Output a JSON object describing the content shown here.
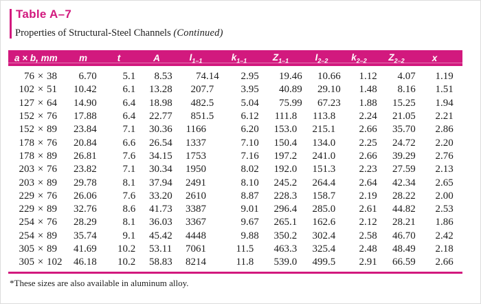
{
  "title": "Table A–7",
  "subtitle": {
    "main": "Properties of Structural-Steel Channels",
    "continued": "(Continued)"
  },
  "footnote": "*These sizes are also available in aluminum alloy.",
  "accent_color": "#d2197e",
  "table": {
    "times": "×",
    "headers": [
      {
        "main": "a × b, mm",
        "sub": ""
      },
      {
        "main": "m",
        "sub": ""
      },
      {
        "main": "t",
        "sub": ""
      },
      {
        "main": "A",
        "sub": ""
      },
      {
        "main": "I",
        "sub": "1–1"
      },
      {
        "main": "k",
        "sub": "1–1"
      },
      {
        "main": "Z",
        "sub": "1–1"
      },
      {
        "main": "I",
        "sub": "2–2"
      },
      {
        "main": "k",
        "sub": "2–2"
      },
      {
        "main": "Z",
        "sub": "2–2"
      },
      {
        "main": "x",
        "sub": ""
      }
    ],
    "rows": [
      {
        "size": {
          "a": "76",
          "b": "38"
        },
        "values": [
          "6.70",
          "5.1",
          "8.53",
          "74.14",
          "2.95",
          "19.46",
          "10.66",
          "1.12",
          "4.07",
          "1.19"
        ]
      },
      {
        "size": {
          "a": "102",
          "b": "51"
        },
        "values": [
          "10.42",
          "6.1",
          "13.28",
          "207.7",
          "3.95",
          "40.89",
          "29.10",
          "1.48",
          "8.16",
          "1.51"
        ]
      },
      {
        "size": {
          "a": "127",
          "b": "64"
        },
        "values": [
          "14.90",
          "6.4",
          "18.98",
          "482.5",
          "5.04",
          "75.99",
          "67.23",
          "1.88",
          "15.25",
          "1.94"
        ]
      },
      {
        "size": {
          "a": "152",
          "b": "76"
        },
        "values": [
          "17.88",
          "6.4",
          "22.77",
          "851.5",
          "6.12",
          "111.8",
          "113.8",
          "2.24",
          "21.05",
          "2.21"
        ]
      },
      {
        "size": {
          "a": "152",
          "b": "89"
        },
        "values": [
          "23.84",
          "7.1",
          "30.36",
          "1166",
          "6.20",
          "153.0",
          "215.1",
          "2.66",
          "35.70",
          "2.86"
        ]
      },
      {
        "size": {
          "a": "178",
          "b": "76"
        },
        "values": [
          "20.84",
          "6.6",
          "26.54",
          "1337",
          "7.10",
          "150.4",
          "134.0",
          "2.25",
          "24.72",
          "2.20"
        ]
      },
      {
        "size": {
          "a": "178",
          "b": "89"
        },
        "values": [
          "26.81",
          "7.6",
          "34.15",
          "1753",
          "7.16",
          "197.2",
          "241.0",
          "2.66",
          "39.29",
          "2.76"
        ]
      },
      {
        "size": {
          "a": "203",
          "b": "76"
        },
        "values": [
          "23.82",
          "7.1",
          "30.34",
          "1950",
          "8.02",
          "192.0",
          "151.3",
          "2.23",
          "27.59",
          "2.13"
        ]
      },
      {
        "size": {
          "a": "203",
          "b": "89"
        },
        "values": [
          "29.78",
          "8.1",
          "37.94",
          "2491",
          "8.10",
          "245.2",
          "264.4",
          "2.64",
          "42.34",
          "2.65"
        ]
      },
      {
        "size": {
          "a": "229",
          "b": "76"
        },
        "values": [
          "26.06",
          "7.6",
          "33.20",
          "2610",
          "8.87",
          "228.3",
          "158.7",
          "2.19",
          "28.22",
          "2.00"
        ]
      },
      {
        "size": {
          "a": "229",
          "b": "89"
        },
        "values": [
          "32.76",
          "8.6",
          "41.73",
          "3387",
          "9.01",
          "296.4",
          "285.0",
          "2.61",
          "44.82",
          "2.53"
        ]
      },
      {
        "size": {
          "a": "254",
          "b": "76"
        },
        "values": [
          "28.29",
          "8.1",
          "36.03",
          "3367",
          "9.67",
          "265.1",
          "162.6",
          "2.12",
          "28.21",
          "1.86"
        ]
      },
      {
        "size": {
          "a": "254",
          "b": "89"
        },
        "values": [
          "35.74",
          "9.1",
          "45.42",
          "4448",
          "9.88",
          "350.2",
          "302.4",
          "2.58",
          "46.70",
          "2.42"
        ]
      },
      {
        "size": {
          "a": "305",
          "b": "89"
        },
        "values": [
          "41.69",
          "10.2",
          "53.11",
          "7061",
          "11.5",
          "463.3",
          "325.4",
          "2.48",
          "48.49",
          "2.18"
        ]
      },
      {
        "size": {
          "a": "305",
          "b": "102"
        },
        "values": [
          "46.18",
          "10.2",
          "58.83",
          "8214",
          "11.8",
          "539.0",
          "499.5",
          "2.91",
          "66.59",
          "2.66"
        ]
      }
    ]
  }
}
